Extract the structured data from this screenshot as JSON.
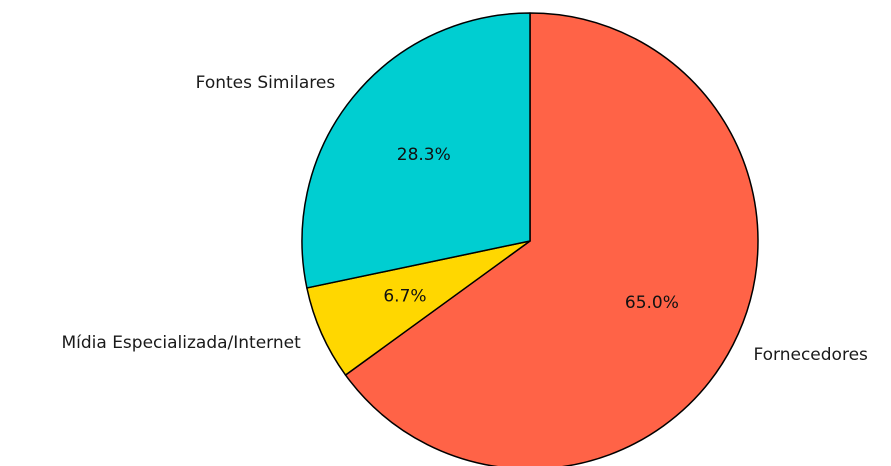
{
  "chart_data": {
    "type": "pie",
    "title": "",
    "start_angle_deg": 90,
    "direction": "clockwise",
    "slices": [
      {
        "label": "Fornecedores",
        "value": 65.0,
        "pct_label": "65.0%",
        "color": "#ff6347"
      },
      {
        "label": "Mídia Especializada/Internet",
        "value": 6.7,
        "pct_label": "6.7%",
        "color": "#ffd700"
      },
      {
        "label": "Fontes Similares",
        "value": 28.3,
        "pct_label": "28.3%",
        "color": "#00ced1"
      }
    ],
    "edge_color": "#000000"
  }
}
